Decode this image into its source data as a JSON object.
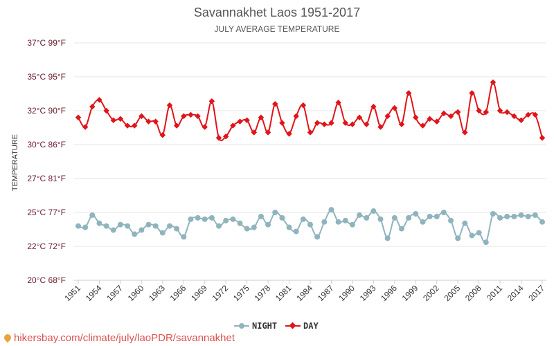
{
  "chart_data": {
    "type": "line",
    "title": "Savannakhet Laos 1951-2017",
    "subtitle": "JULY AVERAGE TEMPERATURE",
    "ylabel": "TEMPERATURE",
    "ylim": [
      20,
      37
    ],
    "y_ticks": [
      {
        "value": 20,
        "label": "20°C 68°F"
      },
      {
        "value": 22.5,
        "label": "22°C 72°F"
      },
      {
        "value": 25,
        "label": "25°C 77°F"
      },
      {
        "value": 27.5,
        "label": "27°C 81°F"
      },
      {
        "value": 30,
        "label": "30°C 86°F"
      },
      {
        "value": 32.5,
        "label": "32°C 90°F"
      },
      {
        "value": 35,
        "label": "35°C 95°F"
      },
      {
        "value": 37.5,
        "label": "37°C 99°F"
      }
    ],
    "x_ticks": [
      1951,
      1954,
      1957,
      1960,
      1963,
      1966,
      1969,
      1972,
      1975,
      1978,
      1981,
      1984,
      1987,
      1990,
      1993,
      1996,
      1999,
      2002,
      2005,
      2008,
      2011,
      2014,
      2017
    ],
    "x": [
      1951,
      1952,
      1953,
      1954,
      1955,
      1956,
      1957,
      1958,
      1959,
      1960,
      1961,
      1962,
      1963,
      1964,
      1965,
      1966,
      1967,
      1968,
      1969,
      1970,
      1971,
      1972,
      1973,
      1974,
      1975,
      1976,
      1977,
      1978,
      1979,
      1980,
      1981,
      1982,
      1983,
      1984,
      1985,
      1986,
      1987,
      1988,
      1989,
      1990,
      1991,
      1992,
      1993,
      1994,
      1995,
      1996,
      1997,
      1998,
      1999,
      2000,
      2001,
      2002,
      2003,
      2004,
      2005,
      2006,
      2007,
      2008,
      2009,
      2010,
      2011,
      2012,
      2013,
      2014,
      2015,
      2016,
      2017
    ],
    "series": [
      {
        "name": "NIGHT",
        "color": "#90b4be",
        "marker": "circle",
        "values": [
          24.0,
          23.9,
          24.8,
          24.2,
          24.0,
          23.7,
          24.1,
          24.0,
          23.4,
          23.7,
          24.1,
          24.0,
          23.5,
          24.0,
          23.8,
          23.2,
          24.5,
          24.6,
          24.5,
          24.6,
          24.0,
          24.4,
          24.5,
          24.2,
          23.8,
          23.9,
          24.7,
          24.1,
          25.0,
          24.6,
          23.9,
          23.6,
          24.5,
          24.1,
          23.2,
          24.3,
          25.2,
          24.3,
          24.4,
          24.1,
          24.8,
          24.6,
          25.1,
          24.5,
          23.1,
          24.6,
          23.8,
          24.6,
          24.9,
          24.3,
          24.7,
          24.7,
          25.0,
          24.4,
          23.1,
          24.2,
          23.3,
          23.5,
          22.8,
          24.9,
          24.6,
          24.7,
          24.7,
          24.8,
          24.7,
          24.8,
          24.3
        ]
      },
      {
        "name": "DAY",
        "color": "#e0141a",
        "marker": "diamond",
        "values": [
          32.0,
          31.3,
          32.8,
          33.3,
          32.5,
          31.8,
          31.9,
          31.4,
          31.4,
          32.1,
          31.7,
          31.7,
          30.7,
          32.9,
          31.4,
          32.1,
          32.2,
          32.1,
          31.3,
          33.2,
          30.5,
          30.6,
          31.4,
          31.7,
          31.8,
          30.9,
          32.0,
          30.9,
          33.0,
          31.6,
          30.8,
          32.1,
          32.9,
          30.9,
          31.6,
          31.5,
          31.6,
          33.1,
          31.6,
          31.5,
          32.0,
          31.5,
          32.8,
          31.3,
          32.1,
          32.7,
          31.5,
          33.8,
          32.0,
          31.4,
          31.9,
          31.7,
          32.3,
          32.1,
          32.4,
          30.9,
          33.8,
          32.5,
          32.4,
          34.6,
          32.5,
          32.4,
          32.1,
          31.8,
          32.2,
          32.2,
          30.5
        ]
      }
    ],
    "legend_position": "bottom-center",
    "grid": true
  },
  "footer": {
    "source": "hikersbay.com/climate/july/laoPDR/savannakhet",
    "pin_color": "#e8a33c"
  }
}
